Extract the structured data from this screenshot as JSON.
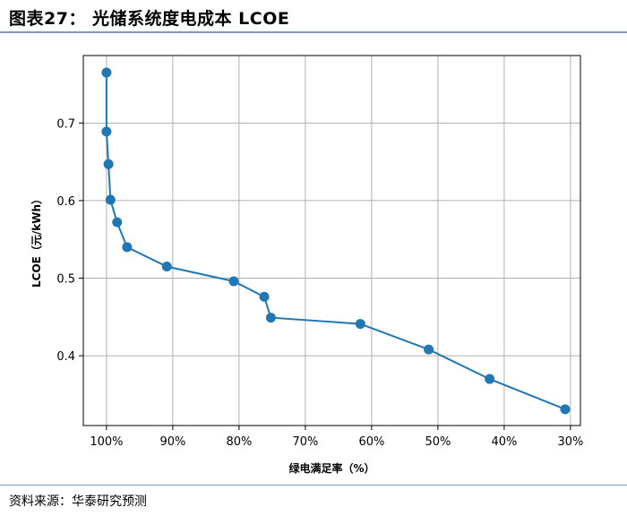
{
  "figure": {
    "title": "图表27： 光储系统度电成本 LCOE",
    "source": "资料来源：华泰研究预测"
  },
  "colors": {
    "series": "#1f77b4",
    "grid": "#b0b0b0",
    "rule": "#7f97b7"
  },
  "chart_data": {
    "type": "line",
    "title": "",
    "xlabel": "绿电满足率（%）",
    "ylabel": "LCOE（元/kWh）",
    "x_reversed": true,
    "xlim": [
      103.5,
      28.5
    ],
    "ylim": [
      0.31,
      0.787
    ],
    "grid": true,
    "x_ticks": [
      100,
      90,
      80,
      70,
      60,
      50,
      40,
      30
    ],
    "x_tick_labels": [
      "100%",
      "90%",
      "80%",
      "70%",
      "60%",
      "50%",
      "40%",
      "30%"
    ],
    "y_ticks": [
      0.4,
      0.5,
      0.6,
      0.7
    ],
    "y_tick_labels": [
      "0.4",
      "0.5",
      "0.6",
      "0.7"
    ],
    "series": [
      {
        "x": [
          100,
          100,
          99.7,
          99.4,
          98.4,
          96.9,
          90.9,
          80.8,
          76.2,
          75.2,
          61.7,
          51.4,
          42.2,
          30.8
        ],
        "y": [
          0.765,
          0.689,
          0.647,
          0.601,
          0.572,
          0.54,
          0.515,
          0.496,
          0.476,
          0.449,
          0.441,
          0.408,
          0.37,
          0.331
        ]
      }
    ]
  }
}
